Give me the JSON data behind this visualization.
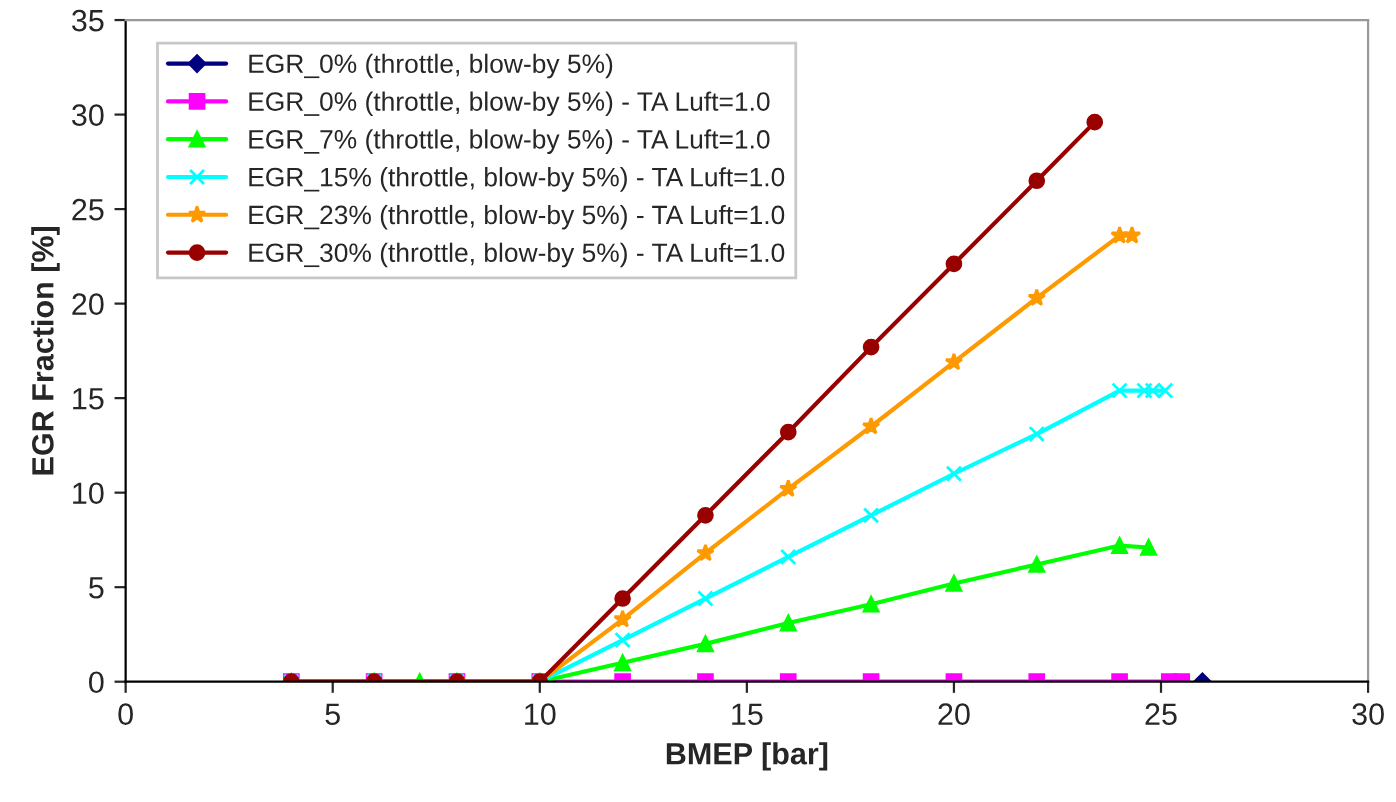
{
  "chart_data": {
    "type": "line",
    "xlabel": "BMEP [bar]",
    "ylabel": "EGR Fraction [%]",
    "xlim": [
      0,
      30
    ],
    "xticks": [
      0,
      5,
      10,
      15,
      20,
      25,
      30
    ],
    "ylim": [
      0,
      35
    ],
    "yticks": [
      0,
      5,
      10,
      15,
      20,
      25,
      30,
      35
    ],
    "grid": false,
    "legend": "top left",
    "series": [
      {
        "name": "EGR_0% (throttle, blow-by 5%)",
        "color": "#000080",
        "marker": "diamond",
        "x": [
          26
        ],
        "values": [
          0
        ]
      },
      {
        "name": "EGR_0% (throttle, blow-by 5%) - TA Luft=1.0",
        "color": "#ff00ff",
        "marker": "square",
        "x": [
          4,
          6,
          8,
          10,
          12,
          14,
          16,
          18,
          20,
          22,
          24,
          25.2,
          25.5
        ],
        "values": [
          0,
          0,
          0,
          0,
          0,
          0,
          0,
          0,
          0,
          0,
          0,
          0,
          0
        ]
      },
      {
        "name": "EGR_7% (throttle, blow-by 5%) - TA Luft=1.0",
        "color": "#00ff00",
        "marker": "triangle",
        "x": [
          4,
          6,
          7.1,
          8,
          10,
          12,
          14,
          16,
          18,
          20,
          22,
          24,
          24.7
        ],
        "values": [
          0,
          0,
          0,
          0,
          0,
          1.0,
          2.0,
          3.1,
          4.1,
          5.2,
          6.2,
          7.2,
          7.1
        ]
      },
      {
        "name": "EGR_15% (throttle, blow-by 5%) - TA Luft=1.0",
        "color": "#00ffff",
        "marker": "cross",
        "x": [
          4,
          6,
          8,
          10,
          12,
          14,
          16,
          18,
          20,
          22,
          24,
          24.6,
          24.8,
          25.1
        ],
        "values": [
          0,
          0,
          0,
          0,
          2.2,
          4.4,
          6.6,
          8.8,
          11.0,
          13.1,
          15.4,
          15.4,
          15.4,
          15.4
        ]
      },
      {
        "name": "EGR_23% (throttle, blow-by 5%) - TA Luft=1.0",
        "color": "#ff9900",
        "marker": "star",
        "x": [
          8,
          10,
          12,
          14,
          16,
          18,
          20,
          22,
          24,
          24.3
        ],
        "values": [
          0,
          0,
          3.3,
          6.8,
          10.2,
          13.5,
          16.9,
          20.3,
          23.6,
          23.6
        ]
      },
      {
        "name": "EGR_30% (throttle, blow-by 5%) - TA Luft=1.0",
        "color": "#990000",
        "marker": "circle",
        "x": [
          4,
          6,
          8,
          10,
          12,
          14,
          16,
          18,
          20,
          22,
          23.4
        ],
        "values": [
          0,
          0,
          0,
          0,
          4.4,
          8.8,
          13.2,
          17.7,
          22.1,
          26.5,
          29.6
        ]
      }
    ]
  }
}
